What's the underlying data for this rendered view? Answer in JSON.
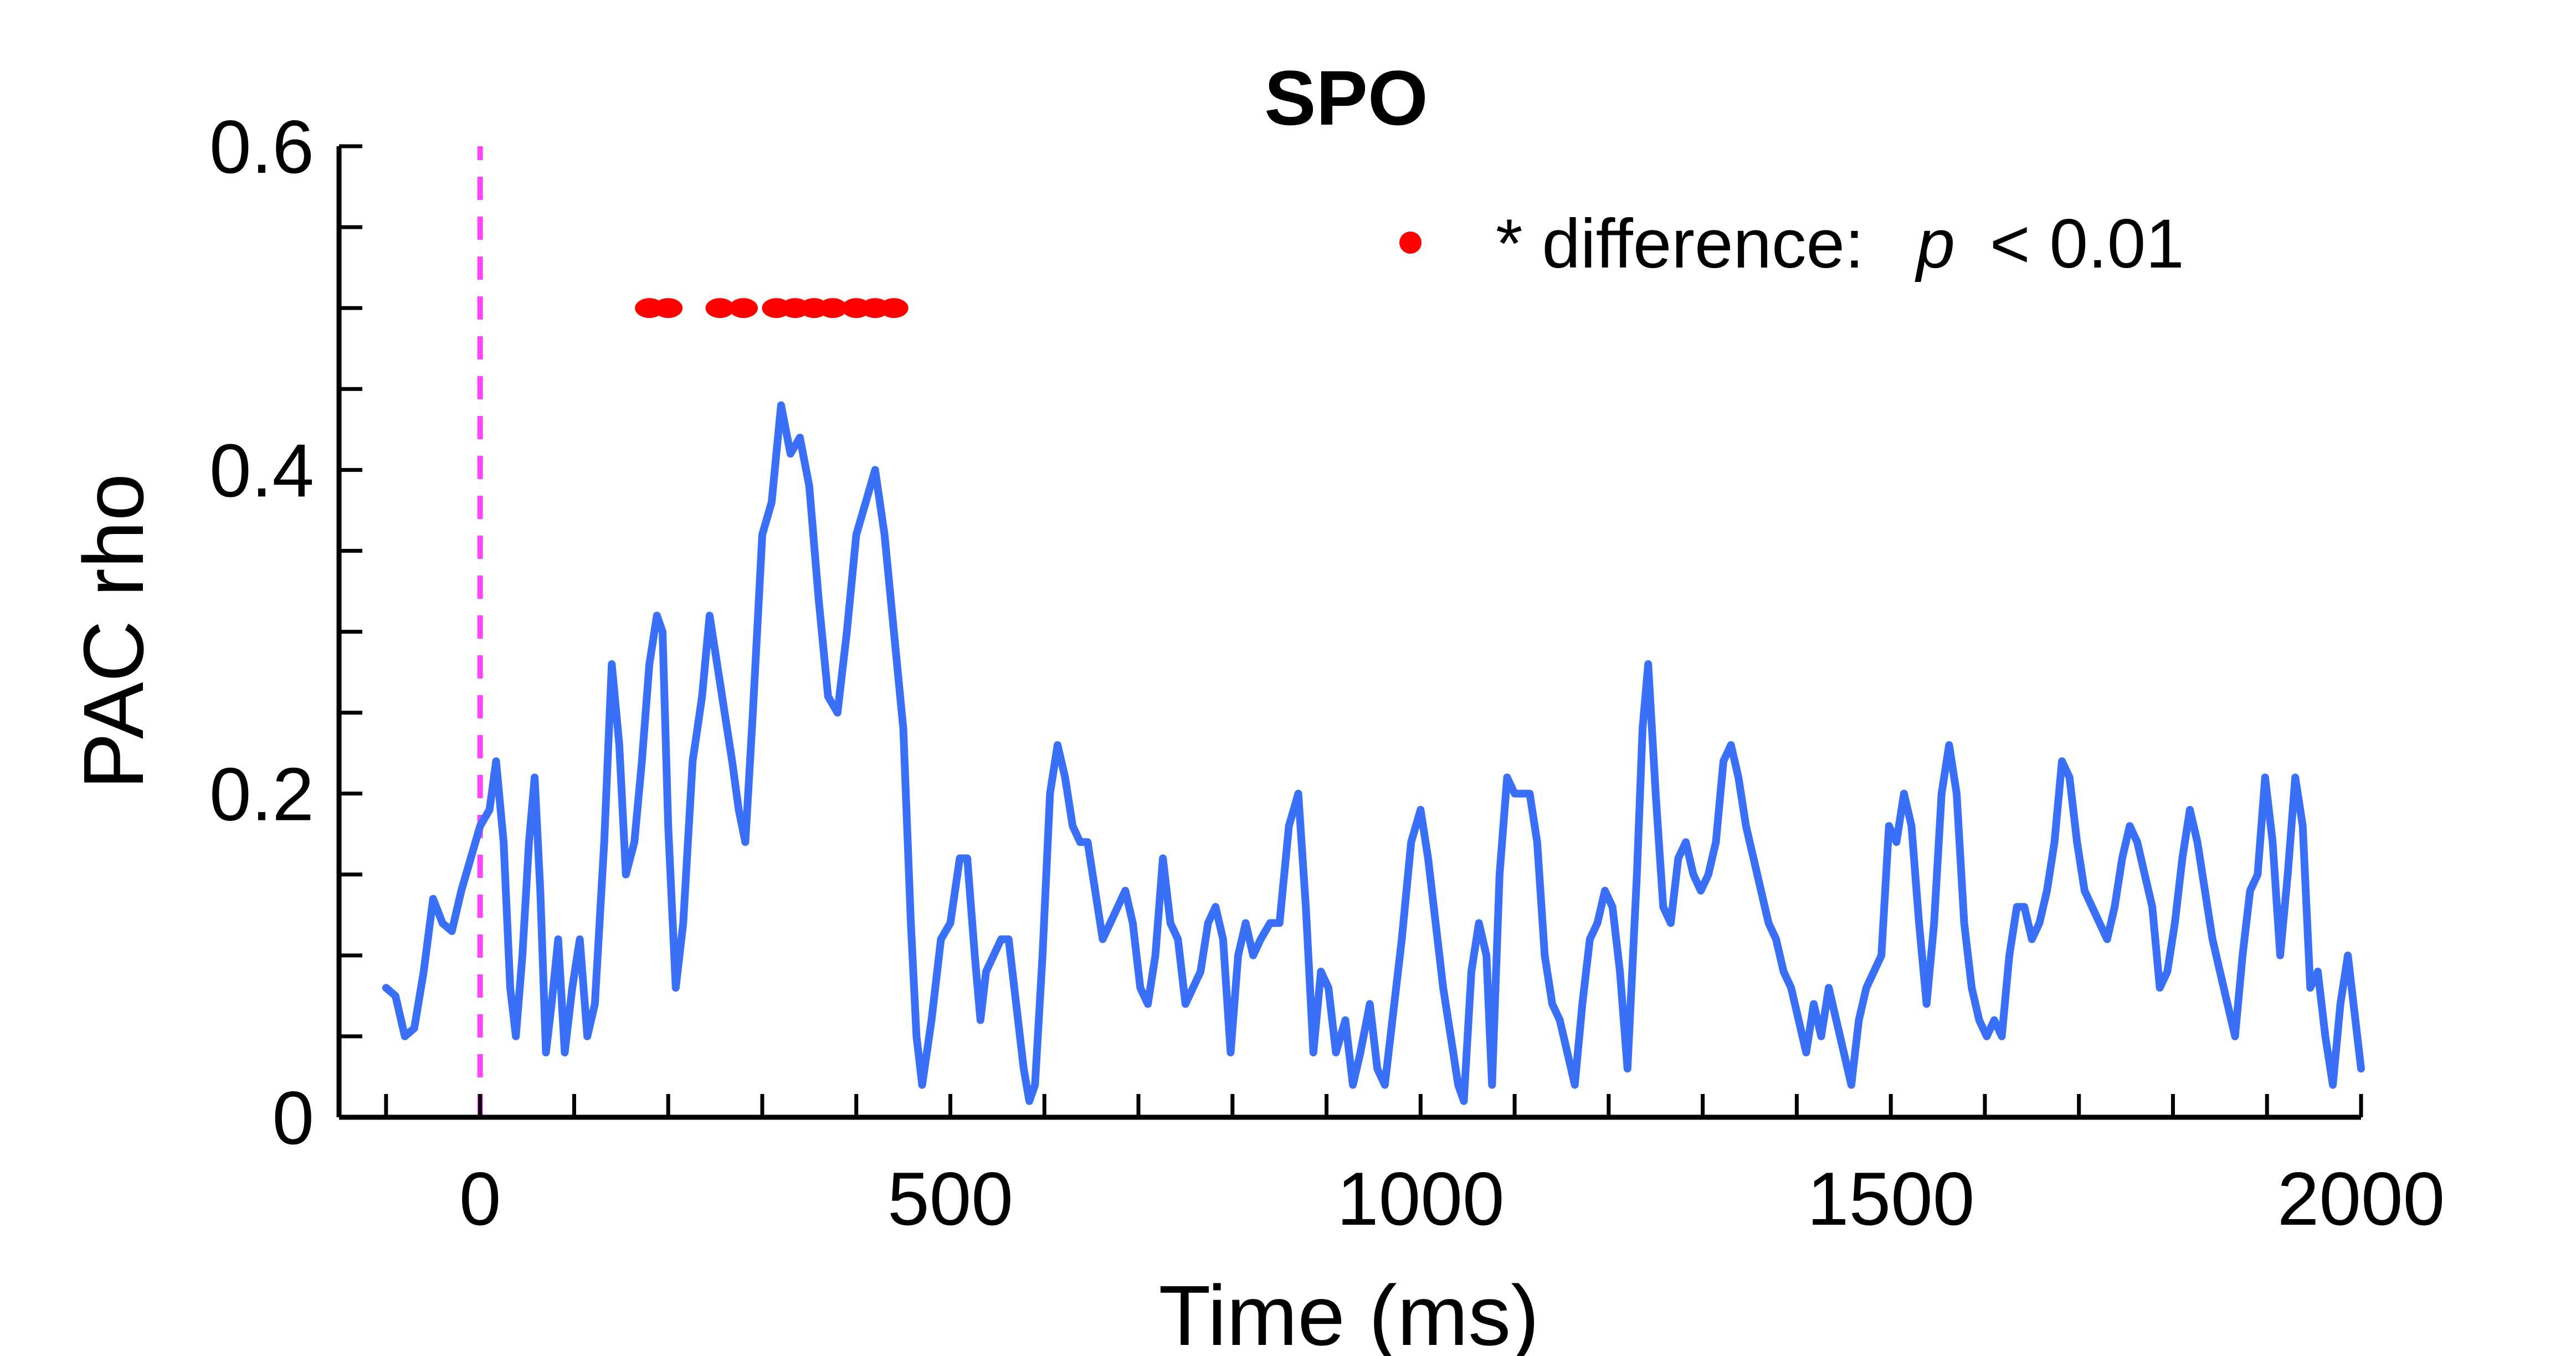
{
  "chart_data": {
    "type": "line",
    "title": "SPO",
    "xlabel": "Time (ms)",
    "ylabel": "PAC rho",
    "xlim": [
      -150,
      2000
    ],
    "ylim": [
      0,
      0.6
    ],
    "x_ticks": [
      0,
      500,
      1000,
      1500,
      2000
    ],
    "x_tick_labels": [
      "0",
      "500",
      "1000",
      "1500",
      "2000"
    ],
    "x_minor_step": 100,
    "y_ticks": [
      0,
      0.2,
      0.4,
      0.6
    ],
    "y_tick_labels": [
      "0",
      "0.2",
      "0.4",
      "0.6"
    ],
    "y_minor_step": 0.05,
    "grid": false,
    "colors": {
      "line": "#3a6ff7",
      "marker": "#ff0000",
      "stimulus_line": "#ff44ff",
      "axis": "#000000"
    },
    "stimulus_onset": {
      "x": 0,
      "style": "dashed"
    },
    "legend": {
      "position": "top-right",
      "marker_label": "* difference:",
      "p_symbol": "p",
      "threshold_text": "< 0.01"
    },
    "significance": {
      "y": 0.5,
      "x": [
        180,
        200,
        255,
        280,
        315,
        335,
        355,
        375,
        400,
        420,
        440
      ]
    },
    "series": [
      {
        "name": "SPO",
        "points": [
          [
            -100,
            0.08
          ],
          [
            -90,
            0.075
          ],
          [
            -80,
            0.05
          ],
          [
            -70,
            0.055
          ],
          [
            -60,
            0.09
          ],
          [
            -50,
            0.135
          ],
          [
            -40,
            0.12
          ],
          [
            -30,
            0.115
          ],
          [
            -20,
            0.14
          ],
          [
            -10,
            0.16
          ],
          [
            0,
            0.18
          ],
          [
            10,
            0.19
          ],
          [
            17,
            0.22
          ],
          [
            25,
            0.17
          ],
          [
            32,
            0.08
          ],
          [
            38,
            0.05
          ],
          [
            45,
            0.1
          ],
          [
            52,
            0.17
          ],
          [
            58,
            0.21
          ],
          [
            64,
            0.14
          ],
          [
            70,
            0.04
          ],
          [
            76,
            0.07
          ],
          [
            83,
            0.11
          ],
          [
            90,
            0.04
          ],
          [
            98,
            0.08
          ],
          [
            106,
            0.11
          ],
          [
            114,
            0.05
          ],
          [
            122,
            0.07
          ],
          [
            132,
            0.17
          ],
          [
            140,
            0.28
          ],
          [
            148,
            0.23
          ],
          [
            155,
            0.15
          ],
          [
            164,
            0.17
          ],
          [
            172,
            0.22
          ],
          [
            180,
            0.28
          ],
          [
            188,
            0.31
          ],
          [
            194,
            0.3
          ],
          [
            200,
            0.18
          ],
          [
            208,
            0.08
          ],
          [
            216,
            0.12
          ],
          [
            226,
            0.22
          ],
          [
            236,
            0.26
          ],
          [
            244,
            0.31
          ],
          [
            252,
            0.28
          ],
          [
            260,
            0.25
          ],
          [
            268,
            0.22
          ],
          [
            275,
            0.19
          ],
          [
            282,
            0.17
          ],
          [
            290,
            0.25
          ],
          [
            300,
            0.36
          ],
          [
            310,
            0.38
          ],
          [
            320,
            0.44
          ],
          [
            330,
            0.41
          ],
          [
            340,
            0.42
          ],
          [
            350,
            0.39
          ],
          [
            360,
            0.32
          ],
          [
            370,
            0.26
          ],
          [
            380,
            0.25
          ],
          [
            390,
            0.3
          ],
          [
            400,
            0.36
          ],
          [
            410,
            0.38
          ],
          [
            420,
            0.4
          ],
          [
            430,
            0.36
          ],
          [
            440,
            0.3
          ],
          [
            450,
            0.24
          ],
          [
            458,
            0.12
          ],
          [
            464,
            0.05
          ],
          [
            470,
            0.02
          ],
          [
            480,
            0.06
          ],
          [
            490,
            0.11
          ],
          [
            500,
            0.12
          ],
          [
            510,
            0.16
          ],
          [
            518,
            0.16
          ],
          [
            526,
            0.1
          ],
          [
            532,
            0.06
          ],
          [
            538,
            0.09
          ],
          [
            546,
            0.1
          ],
          [
            554,
            0.11
          ],
          [
            562,
            0.11
          ],
          [
            570,
            0.07
          ],
          [
            578,
            0.03
          ],
          [
            584,
            0.01
          ],
          [
            590,
            0.02
          ],
          [
            598,
            0.1
          ],
          [
            606,
            0.2
          ],
          [
            614,
            0.23
          ],
          [
            622,
            0.21
          ],
          [
            630,
            0.18
          ],
          [
            638,
            0.17
          ],
          [
            646,
            0.17
          ],
          [
            654,
            0.14
          ],
          [
            662,
            0.11
          ],
          [
            670,
            0.12
          ],
          [
            678,
            0.13
          ],
          [
            686,
            0.14
          ],
          [
            694,
            0.12
          ],
          [
            702,
            0.08
          ],
          [
            710,
            0.07
          ],
          [
            718,
            0.1
          ],
          [
            726,
            0.16
          ],
          [
            734,
            0.12
          ],
          [
            742,
            0.11
          ],
          [
            750,
            0.07
          ],
          [
            758,
            0.08
          ],
          [
            766,
            0.09
          ],
          [
            774,
            0.12
          ],
          [
            782,
            0.13
          ],
          [
            790,
            0.11
          ],
          [
            798,
            0.04
          ],
          [
            806,
            0.1
          ],
          [
            814,
            0.12
          ],
          [
            822,
            0.1
          ],
          [
            830,
            0.11
          ],
          [
            840,
            0.12
          ],
          [
            850,
            0.12
          ],
          [
            860,
            0.18
          ],
          [
            870,
            0.2
          ],
          [
            878,
            0.13
          ],
          [
            886,
            0.04
          ],
          [
            894,
            0.09
          ],
          [
            902,
            0.08
          ],
          [
            910,
            0.04
          ],
          [
            920,
            0.06
          ],
          [
            928,
            0.02
          ],
          [
            936,
            0.04
          ],
          [
            946,
            0.07
          ],
          [
            954,
            0.03
          ],
          [
            962,
            0.02
          ],
          [
            970,
            0.06
          ],
          [
            980,
            0.11
          ],
          [
            990,
            0.17
          ],
          [
            1000,
            0.19
          ],
          [
            1008,
            0.16
          ],
          [
            1016,
            0.12
          ],
          [
            1024,
            0.08
          ],
          [
            1032,
            0.05
          ],
          [
            1040,
            0.02
          ],
          [
            1046,
            0.01
          ],
          [
            1054,
            0.09
          ],
          [
            1062,
            0.12
          ],
          [
            1070,
            0.1
          ],
          [
            1076,
            0.02
          ],
          [
            1084,
            0.15
          ],
          [
            1092,
            0.21
          ],
          [
            1100,
            0.2
          ],
          [
            1108,
            0.2
          ],
          [
            1116,
            0.2
          ],
          [
            1124,
            0.17
          ],
          [
            1132,
            0.1
          ],
          [
            1140,
            0.07
          ],
          [
            1148,
            0.06
          ],
          [
            1156,
            0.04
          ],
          [
            1164,
            0.02
          ],
          [
            1172,
            0.07
          ],
          [
            1180,
            0.11
          ],
          [
            1188,
            0.12
          ],
          [
            1196,
            0.14
          ],
          [
            1204,
            0.13
          ],
          [
            1212,
            0.09
          ],
          [
            1220,
            0.03
          ],
          [
            1230,
            0.15
          ],
          [
            1236,
            0.24
          ],
          [
            1242,
            0.28
          ],
          [
            1250,
            0.2
          ],
          [
            1258,
            0.13
          ],
          [
            1266,
            0.12
          ],
          [
            1274,
            0.16
          ],
          [
            1282,
            0.17
          ],
          [
            1290,
            0.15
          ],
          [
            1298,
            0.14
          ],
          [
            1306,
            0.15
          ],
          [
            1314,
            0.17
          ],
          [
            1322,
            0.22
          ],
          [
            1330,
            0.23
          ],
          [
            1338,
            0.21
          ],
          [
            1346,
            0.18
          ],
          [
            1354,
            0.16
          ],
          [
            1362,
            0.14
          ],
          [
            1370,
            0.12
          ],
          [
            1378,
            0.11
          ],
          [
            1386,
            0.09
          ],
          [
            1394,
            0.08
          ],
          [
            1402,
            0.06
          ],
          [
            1410,
            0.04
          ],
          [
            1418,
            0.07
          ],
          [
            1426,
            0.05
          ],
          [
            1434,
            0.08
          ],
          [
            1442,
            0.06
          ],
          [
            1450,
            0.04
          ],
          [
            1458,
            0.02
          ],
          [
            1466,
            0.06
          ],
          [
            1474,
            0.08
          ],
          [
            1482,
            0.09
          ],
          [
            1490,
            0.1
          ],
          [
            1498,
            0.18
          ],
          [
            1506,
            0.17
          ],
          [
            1514,
            0.2
          ],
          [
            1522,
            0.18
          ],
          [
            1530,
            0.12
          ],
          [
            1538,
            0.07
          ],
          [
            1546,
            0.12
          ],
          [
            1554,
            0.2
          ],
          [
            1562,
            0.23
          ],
          [
            1570,
            0.2
          ],
          [
            1578,
            0.12
          ],
          [
            1586,
            0.08
          ],
          [
            1594,
            0.06
          ],
          [
            1602,
            0.05
          ],
          [
            1610,
            0.06
          ],
          [
            1618,
            0.05
          ],
          [
            1626,
            0.1
          ],
          [
            1634,
            0.13
          ],
          [
            1642,
            0.13
          ],
          [
            1650,
            0.11
          ],
          [
            1658,
            0.12
          ],
          [
            1666,
            0.14
          ],
          [
            1674,
            0.17
          ],
          [
            1682,
            0.22
          ],
          [
            1690,
            0.21
          ],
          [
            1698,
            0.17
          ],
          [
            1706,
            0.14
          ],
          [
            1714,
            0.13
          ],
          [
            1722,
            0.12
          ],
          [
            1730,
            0.11
          ],
          [
            1738,
            0.13
          ],
          [
            1746,
            0.16
          ],
          [
            1754,
            0.18
          ],
          [
            1762,
            0.17
          ],
          [
            1770,
            0.15
          ],
          [
            1778,
            0.13
          ],
          [
            1786,
            0.08
          ],
          [
            1794,
            0.09
          ],
          [
            1802,
            0.12
          ],
          [
            1810,
            0.16
          ],
          [
            1818,
            0.19
          ],
          [
            1826,
            0.17
          ],
          [
            1834,
            0.14
          ],
          [
            1842,
            0.11
          ],
          [
            1850,
            0.09
          ],
          [
            1858,
            0.07
          ],
          [
            1866,
            0.05
          ],
          [
            1874,
            0.1
          ],
          [
            1882,
            0.14
          ],
          [
            1890,
            0.15
          ],
          [
            1898,
            0.21
          ],
          [
            1906,
            0.17
          ],
          [
            1914,
            0.1
          ],
          [
            1922,
            0.15
          ],
          [
            1930,
            0.21
          ],
          [
            1938,
            0.18
          ],
          [
            1946,
            0.08
          ],
          [
            1954,
            0.09
          ],
          [
            1962,
            0.05
          ],
          [
            1970,
            0.02
          ],
          [
            1978,
            0.07
          ],
          [
            1986,
            0.1
          ],
          [
            1994,
            0.06
          ],
          [
            2000,
            0.03
          ]
        ]
      }
    ]
  }
}
